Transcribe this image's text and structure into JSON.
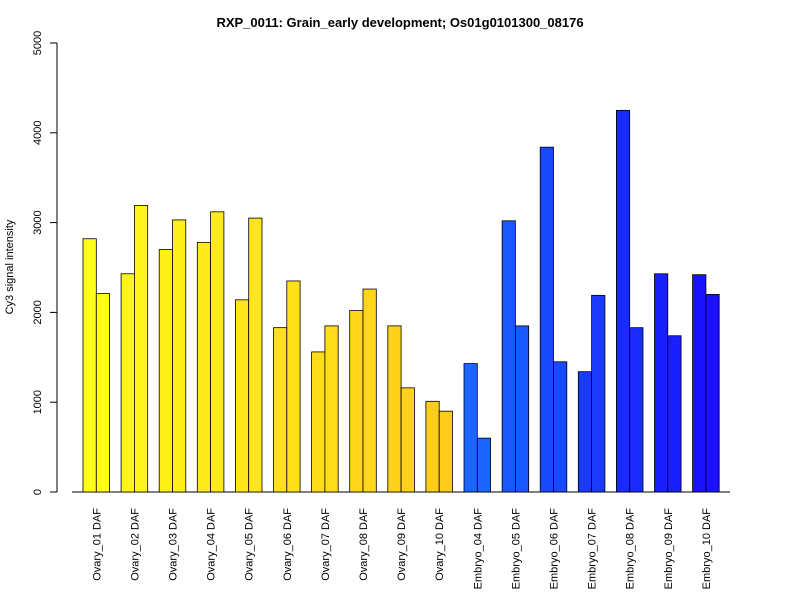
{
  "chart_data": {
    "type": "bar",
    "title": "RXP_0011: Grain_early development; Os01g0101300_08176",
    "xlabel": "",
    "ylabel": "Cy3 signal intensity",
    "ylim": [
      0,
      5000
    ],
    "yticks": [
      0,
      1000,
      2000,
      3000,
      4000,
      5000
    ],
    "grid": false,
    "bars_per_group": 2,
    "categories": [
      "Ovary_01 DAF",
      "Ovary_02 DAF",
      "Ovary_03 DAF",
      "Ovary_04 DAF",
      "Ovary_05 DAF",
      "Ovary_06 DAF",
      "Ovary_07 DAF",
      "Ovary_08 DAF",
      "Ovary_09 DAF",
      "Ovary_10 DAF",
      "Embryo_04 DAF",
      "Embryo_05 DAF",
      "Embryo_06 DAF",
      "Embryo_07 DAF",
      "Embryo_08 DAF",
      "Embryo_09 DAF",
      "Embryo_10 DAF"
    ],
    "groups": [
      {
        "values": [
          2820,
          2210
        ],
        "color": "#ffff1a"
      },
      {
        "values": [
          2430,
          3190
        ],
        "color": "#fff51a"
      },
      {
        "values": [
          2700,
          3030
        ],
        "color": "#fff01a"
      },
      {
        "values": [
          2780,
          3120
        ],
        "color": "#ffeb1a"
      },
      {
        "values": [
          2140,
          3050
        ],
        "color": "#ffe61a"
      },
      {
        "values": [
          1830,
          2350
        ],
        "color": "#ffe01a"
      },
      {
        "values": [
          1560,
          1850
        ],
        "color": "#ffdb1a"
      },
      {
        "values": [
          2020,
          2260
        ],
        "color": "#ffd61a"
      },
      {
        "values": [
          1850,
          1160
        ],
        "color": "#ffd11a"
      },
      {
        "values": [
          1010,
          900
        ],
        "color": "#ffcc1a"
      },
      {
        "values": [
          1430,
          600
        ],
        "color": "#1a66ff"
      },
      {
        "values": [
          3020,
          1850
        ],
        "color": "#1a57ff"
      },
      {
        "values": [
          3840,
          1450
        ],
        "color": "#1a4aff"
      },
      {
        "values": [
          1340,
          2190
        ],
        "color": "#1a3aff"
      },
      {
        "values": [
          4250,
          1830
        ],
        "color": "#1a2bff"
      },
      {
        "values": [
          2430,
          1740
        ],
        "color": "#1a1fff"
      },
      {
        "values": [
          2420,
          2200
        ],
        "color": "#1a12ff"
      }
    ]
  }
}
